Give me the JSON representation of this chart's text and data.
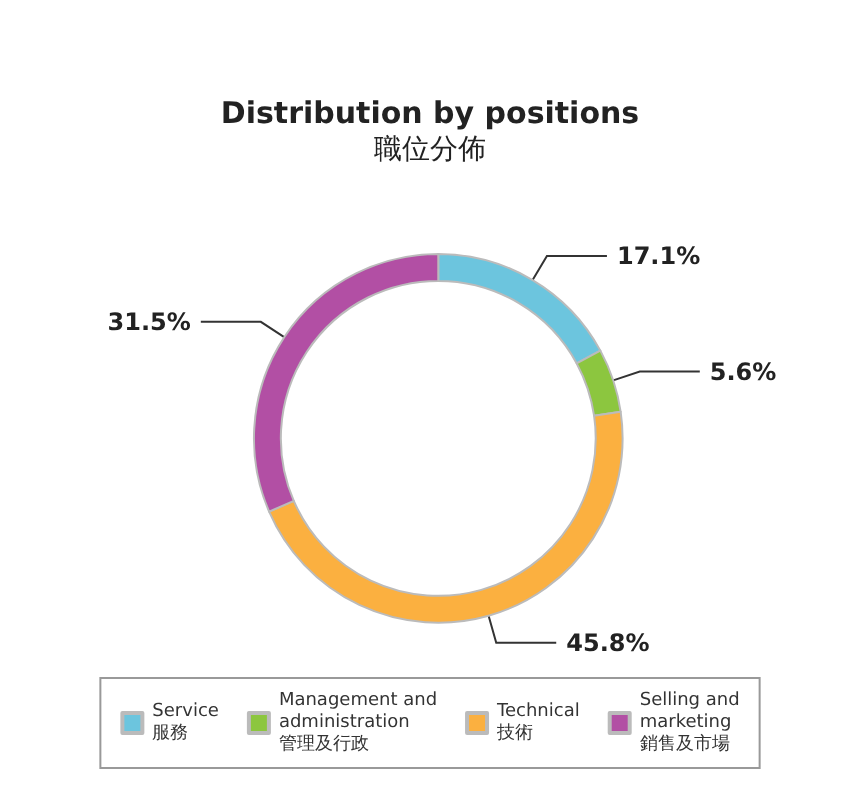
{
  "chart_data": {
    "type": "donut",
    "title": "Distribution by positions",
    "subtitle": "職位分佈",
    "categories": [
      "Service\n服務",
      "Management and\nadministration\n管理及行政",
      "Technical\n技術",
      "Selling and\nmarketing\n銷售及市場"
    ],
    "values": [
      17.1,
      5.6,
      45.8,
      31.5
    ],
    "colors": [
      "#6cc5de",
      "#8cc63f",
      "#fbb040",
      "#b24fa4"
    ],
    "value_labels": [
      "17.1%",
      "5.6%",
      "45.8%",
      "31.5%"
    ],
    "legend": "bottom"
  }
}
